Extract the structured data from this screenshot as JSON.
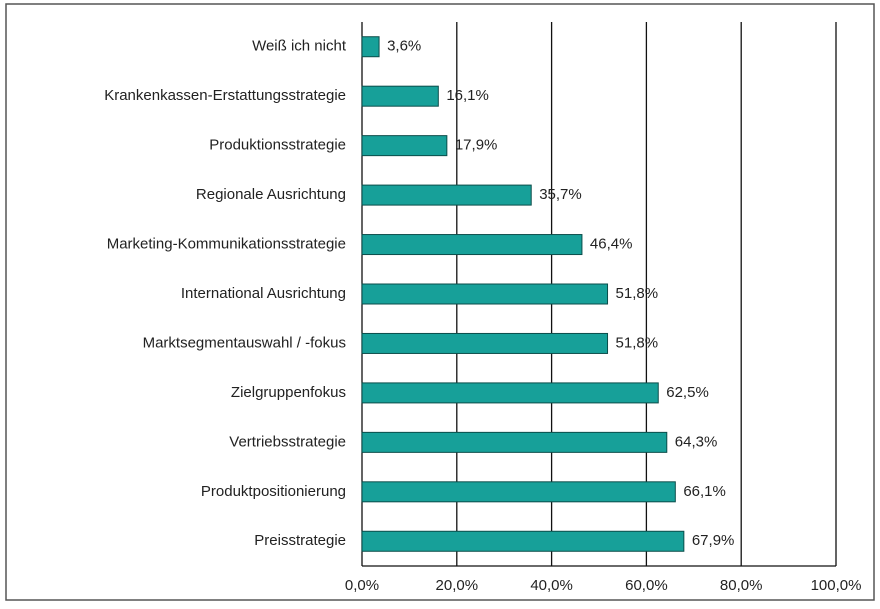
{
  "chart_data": {
    "type": "bar",
    "orientation": "horizontal",
    "categories": [
      "Weiß ich nicht",
      "Krankenkassen-Erstattungsstrategie",
      "Produktionsstrategie",
      "Regionale Ausrichtung",
      "Marketing-Kommunikationsstrategie",
      "International Ausrichtung",
      "Marktsegmentauswahl / -fokus",
      "Zielgruppenfokus",
      "Vertriebsstrategie",
      "Produktpositionierung",
      "Preisstrategie"
    ],
    "values": [
      3.6,
      16.1,
      17.9,
      35.7,
      46.4,
      51.8,
      51.8,
      62.5,
      64.3,
      66.1,
      67.9
    ],
    "value_labels": [
      "3,6%",
      "16,1%",
      "17,9%",
      "35,7%",
      "46,4%",
      "51,8%",
      "51,8%",
      "62,5%",
      "64,3%",
      "66,1%",
      "67,9%"
    ],
    "color": "#17a099",
    "xlim": [
      0,
      100
    ],
    "xticks": [
      {
        "value": 0,
        "label": "0,0%"
      },
      {
        "value": 20,
        "label": "20,0%"
      },
      {
        "value": 40,
        "label": "40,0%"
      },
      {
        "value": 60,
        "label": "60,0%"
      },
      {
        "value": 80,
        "label": "80,0%"
      },
      {
        "value": 100,
        "label": "100,0%"
      }
    ],
    "grid": true
  }
}
